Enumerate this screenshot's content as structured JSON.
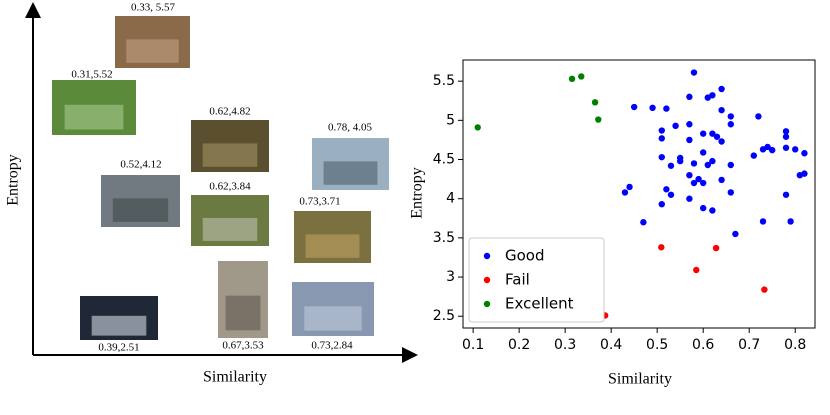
{
  "chart_data": [
    {
      "type": "image-map",
      "xlabel": "Similarity",
      "ylabel": "Entropy",
      "items": [
        {
          "label": "0.33, 5.57"
        },
        {
          "label": "0.31,5.52"
        },
        {
          "label": "0.62,4.82"
        },
        {
          "label": "0.78, 4.05"
        },
        {
          "label": "0.52,4.12"
        },
        {
          "label": "0.62,3.84"
        },
        {
          "label": "0.73,3.71"
        },
        {
          "label": "0.39,2.51"
        },
        {
          "label": "0.67,3.53"
        },
        {
          "label": "0.73,2.84"
        }
      ]
    },
    {
      "type": "scatter",
      "xlabel": "Similarity",
      "ylabel": "Entropy",
      "xlim": [
        0.078,
        0.843
      ],
      "ylim": [
        2.35,
        5.77
      ],
      "xticks": [
        0.1,
        0.2,
        0.3,
        0.4,
        0.5,
        0.6,
        0.7,
        0.8
      ],
      "yticks": [
        2.5,
        3.0,
        3.5,
        4.0,
        4.5,
        5.0,
        5.5
      ],
      "legend": "lower left",
      "series": [
        {
          "name": "Good",
          "color": "#0000ff",
          "x": [
            0.45,
            0.49,
            0.52,
            0.58,
            0.57,
            0.61,
            0.62,
            0.64,
            0.51,
            0.51,
            0.54,
            0.57,
            0.57,
            0.6,
            0.62,
            0.63,
            0.64,
            0.64,
            0.66,
            0.66,
            0.72,
            0.73,
            0.74,
            0.75,
            0.71,
            0.78,
            0.78,
            0.8,
            0.82,
            0.78,
            0.51,
            0.55,
            0.55,
            0.58,
            0.6,
            0.61,
            0.62,
            0.66,
            0.44,
            0.43,
            0.52,
            0.53,
            0.57,
            0.58,
            0.59,
            0.6,
            0.64,
            0.66,
            0.51,
            0.57,
            0.6,
            0.62,
            0.47,
            0.67,
            0.73,
            0.79,
            0.78,
            0.81,
            0.82,
            0.53
          ],
          "values": [
            5.17,
            5.16,
            5.15,
            5.61,
            5.3,
            5.29,
            5.32,
            5.4,
            4.87,
            4.77,
            4.93,
            4.95,
            4.75,
            4.83,
            4.83,
            4.79,
            4.73,
            5.13,
            5.05,
            4.95,
            5.05,
            4.63,
            4.66,
            4.62,
            4.55,
            4.86,
            4.79,
            4.63,
            4.58,
            4.65,
            4.53,
            4.48,
            4.52,
            4.45,
            4.59,
            4.43,
            4.48,
            4.43,
            4.15,
            4.08,
            4.12,
            4.05,
            4.3,
            4.2,
            4.25,
            4.2,
            4.24,
            4.08,
            3.93,
            4.0,
            3.88,
            3.85,
            3.7,
            3.55,
            3.71,
            3.71,
            4.05,
            4.3,
            4.32,
            4.42
          ]
        },
        {
          "name": "Fail",
          "color": "#ff0000",
          "x": [
            0.387,
            0.509,
            0.585,
            0.628,
            0.733
          ],
          "values": [
            2.51,
            3.38,
            3.09,
            3.37,
            2.84
          ]
        },
        {
          "name": "Excellent",
          "color": "#008000",
          "x": [
            0.11,
            0.315,
            0.335,
            0.365,
            0.372
          ],
          "values": [
            4.91,
            5.53,
            5.56,
            5.23,
            5.01
          ]
        }
      ]
    }
  ]
}
